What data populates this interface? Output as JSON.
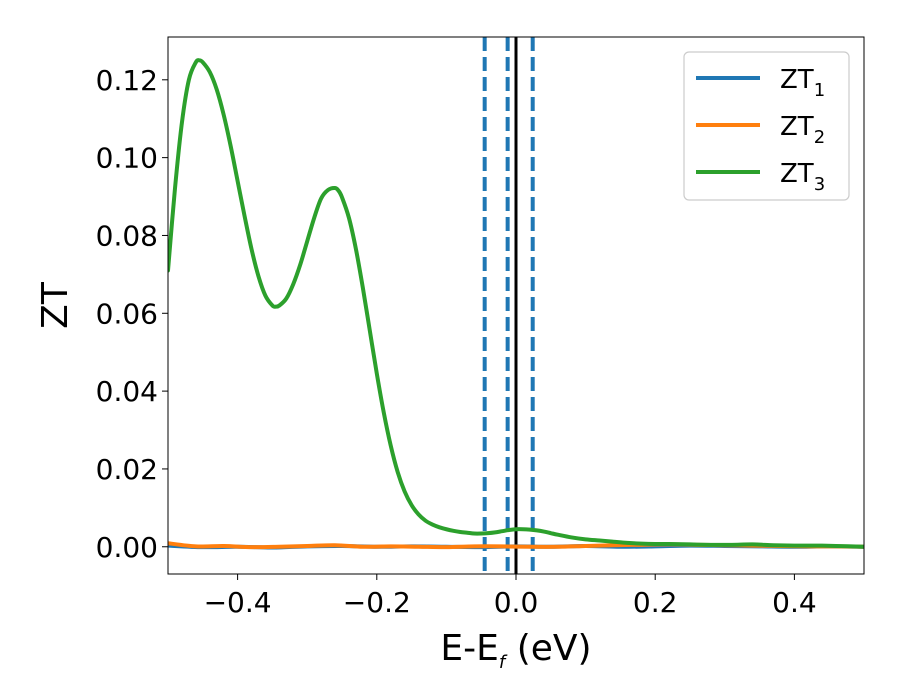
{
  "chart_data": {
    "type": "line",
    "title": "",
    "xlabel": {
      "main": "E-E",
      "sub": "f",
      "suffix": " (eV)"
    },
    "ylabel": "ZT",
    "xlim": [
      -0.5,
      0.5
    ],
    "ylim": [
      -0.007,
      0.131
    ],
    "xticks": [
      -0.4,
      -0.2,
      0.0,
      0.2,
      0.4
    ],
    "xtick_labels": [
      "−0.4",
      "−0.2",
      "0.0",
      "0.2",
      "0.4"
    ],
    "yticks": [
      0.0,
      0.02,
      0.04,
      0.06,
      0.08,
      0.1,
      0.12
    ],
    "ytick_labels": [
      "0.00",
      "0.02",
      "0.04",
      "0.06",
      "0.08",
      "0.10",
      "0.12"
    ],
    "grid": false,
    "legend_position": "top-right",
    "vertical_lines": [
      {
        "x": -0.045,
        "style": "dashed",
        "color": "#1f77b4"
      },
      {
        "x": -0.012,
        "style": "dashed",
        "color": "#1f77b4"
      },
      {
        "x": 0.0,
        "style": "solid",
        "color": "#000000"
      },
      {
        "x": 0.024,
        "style": "dashed",
        "color": "#1f77b4"
      }
    ],
    "series": [
      {
        "name": "ZT",
        "sub": "1",
        "color": "#1f77b4",
        "x": [
          -0.5,
          -0.45,
          -0.4,
          -0.35,
          -0.3,
          -0.25,
          -0.2,
          -0.15,
          -0.1,
          -0.05,
          0.0,
          0.05,
          0.1,
          0.15,
          0.2,
          0.25,
          0.3,
          0.35,
          0.4,
          0.45,
          0.5
        ],
        "y": [
          0.0003,
          -0.0001,
          0.0,
          -0.0002,
          0.0001,
          0.0002,
          0.0,
          0.0001,
          0.0,
          -0.0001,
          0.0001,
          0.0,
          0.0002,
          0.0,
          0.0001,
          0.0003,
          0.0002,
          0.0001,
          0.0,
          0.0001,
          0.0
        ]
      },
      {
        "name": "ZT",
        "sub": "2",
        "color": "#ff7f0e",
        "x": [
          -0.5,
          -0.46,
          -0.42,
          -0.38,
          -0.34,
          -0.3,
          -0.26,
          -0.22,
          -0.18,
          -0.14,
          -0.1,
          -0.06,
          -0.02,
          0.02,
          0.06,
          0.1,
          0.14,
          0.18,
          0.22,
          0.26,
          0.3,
          0.34,
          0.38,
          0.42,
          0.46,
          0.5
        ],
        "y": [
          0.0009,
          0.0001,
          0.0002,
          -0.0001,
          0.0,
          0.0002,
          0.0004,
          0.0,
          0.0001,
          0.0,
          -0.0001,
          0.0001,
          0.0001,
          0.0,
          0.0,
          0.0002,
          0.0004,
          0.0005,
          0.0006,
          0.0005,
          0.0004,
          0.0003,
          0.0002,
          0.0001,
          0.0001,
          0.0
        ]
      },
      {
        "name": "ZT",
        "sub": "3",
        "color": "#2ca02c",
        "x": [
          -0.5,
          -0.49,
          -0.48,
          -0.47,
          -0.46,
          -0.455,
          -0.45,
          -0.44,
          -0.43,
          -0.42,
          -0.41,
          -0.4,
          -0.39,
          -0.38,
          -0.37,
          -0.36,
          -0.35,
          -0.345,
          -0.34,
          -0.33,
          -0.32,
          -0.31,
          -0.3,
          -0.29,
          -0.28,
          -0.27,
          -0.26,
          -0.255,
          -0.25,
          -0.24,
          -0.23,
          -0.22,
          -0.21,
          -0.2,
          -0.19,
          -0.18,
          -0.17,
          -0.16,
          -0.15,
          -0.14,
          -0.13,
          -0.12,
          -0.11,
          -0.1,
          -0.09,
          -0.08,
          -0.07,
          -0.06,
          -0.05,
          -0.04,
          -0.03,
          -0.02,
          -0.01,
          0.0,
          0.01,
          0.02,
          0.03,
          0.04,
          0.05,
          0.06,
          0.08,
          0.1,
          0.12,
          0.14,
          0.16,
          0.18,
          0.2,
          0.22,
          0.25,
          0.28,
          0.31,
          0.34,
          0.37,
          0.4,
          0.43,
          0.46,
          0.5
        ],
        "y": [
          0.071,
          0.092,
          0.109,
          0.12,
          0.1245,
          0.125,
          0.1245,
          0.122,
          0.1175,
          0.111,
          0.103,
          0.094,
          0.085,
          0.0765,
          0.0695,
          0.0645,
          0.062,
          0.0617,
          0.062,
          0.0638,
          0.0675,
          0.0725,
          0.0785,
          0.0845,
          0.0895,
          0.0917,
          0.0922,
          0.0915,
          0.0898,
          0.0845,
          0.0765,
          0.0665,
          0.0555,
          0.0445,
          0.0345,
          0.026,
          0.0192,
          0.0142,
          0.0107,
          0.0083,
          0.0067,
          0.0057,
          0.005,
          0.0045,
          0.0041,
          0.0038,
          0.0036,
          0.0034,
          0.0034,
          0.0035,
          0.0037,
          0.004,
          0.0043,
          0.0045,
          0.0045,
          0.0044,
          0.0042,
          0.0039,
          0.0035,
          0.0031,
          0.0024,
          0.0019,
          0.0016,
          0.0013,
          0.001,
          0.0008,
          0.0007,
          0.0007,
          0.0006,
          0.0005,
          0.0005,
          0.0006,
          0.0004,
          0.0003,
          0.0003,
          0.0002,
          0.0
        ]
      }
    ]
  }
}
